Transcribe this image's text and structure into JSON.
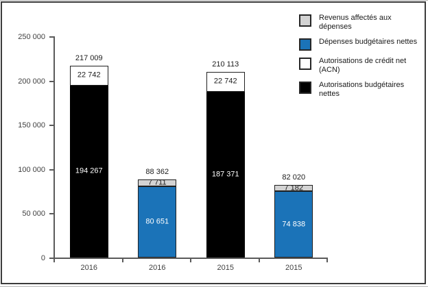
{
  "chart_data": {
    "type": "bar",
    "stacked": true,
    "title": "",
    "xlabel": "",
    "ylabel": "",
    "grid": false,
    "categories": [
      "2016",
      "2016",
      "2015",
      "2015"
    ],
    "y_axis": {
      "ylim": [
        0,
        250000
      ],
      "ticks": [
        {
          "label": "0",
          "value": 0
        },
        {
          "label": "50 000",
          "value": 50000
        },
        {
          "label": "100 000",
          "value": 100000
        },
        {
          "label": "150 000",
          "value": 150000
        },
        {
          "label": "200 000",
          "value": 200000
        },
        {
          "label": "250 000",
          "value": 250000
        }
      ]
    },
    "bars": [
      {
        "category": "2016",
        "total_label": "217 009",
        "total_value": 217009,
        "segments": [
          {
            "series": "Autorisations budgétaires nettes",
            "label": "194 267",
            "value": 194267,
            "fill": "#000000",
            "text_color": "#ffffff"
          },
          {
            "series": "Autorisations de crédit net (ACN)",
            "label": "22 742",
            "value": 22742,
            "fill": "#ffffff",
            "text_color": "#1a1a1a"
          }
        ]
      },
      {
        "category": "2016",
        "total_label": "88 362",
        "total_value": 88362,
        "segments": [
          {
            "series": "Dépenses budgétaires nettes",
            "label": "80 651",
            "value": 80651,
            "fill": "#1b73b8",
            "text_color": "#ffffff"
          },
          {
            "series": "Revenus affectés aux dépenses",
            "label": "7 711",
            "value": 7711,
            "fill": "#d3d3d3",
            "text_color": "#1a1a1a"
          }
        ]
      },
      {
        "category": "2015",
        "total_label": "210 113",
        "total_value": 210113,
        "segments": [
          {
            "series": "Autorisations budgétaires nettes",
            "label": "187 371",
            "value": 187371,
            "fill": "#000000",
            "text_color": "#ffffff"
          },
          {
            "series": "Autorisations de crédit net (ACN)",
            "label": "22 742",
            "value": 22742,
            "fill": "#ffffff",
            "text_color": "#1a1a1a"
          }
        ]
      },
      {
        "category": "2015",
        "total_label": "82 020",
        "total_value": 82020,
        "segments": [
          {
            "series": "Dépenses budgétaires nettes",
            "label": "74 838",
            "value": 74838,
            "fill": "#1b73b8",
            "text_color": "#ffffff"
          },
          {
            "series": "Revenus affectés aux dépenses",
            "label": "7 182",
            "value": 7182,
            "fill": "#d3d3d3",
            "text_color": "#1a1a1a"
          }
        ]
      }
    ],
    "legend": {
      "position": "top-right",
      "items": [
        {
          "label": "Revenus affectés aux dépenses",
          "fill": "#d3d3d3"
        },
        {
          "label": "Dépenses budgétaires nettes",
          "fill": "#1b73b8"
        },
        {
          "label": "Autorisations de crédit net (ACN)",
          "fill": "#ffffff"
        },
        {
          "label": "Autorisations budgétaires nettes",
          "fill": "#000000"
        }
      ]
    },
    "colors": {
      "axis": "#595959",
      "tick_text": "#404040",
      "frame_border": "#3b3b3b"
    }
  }
}
